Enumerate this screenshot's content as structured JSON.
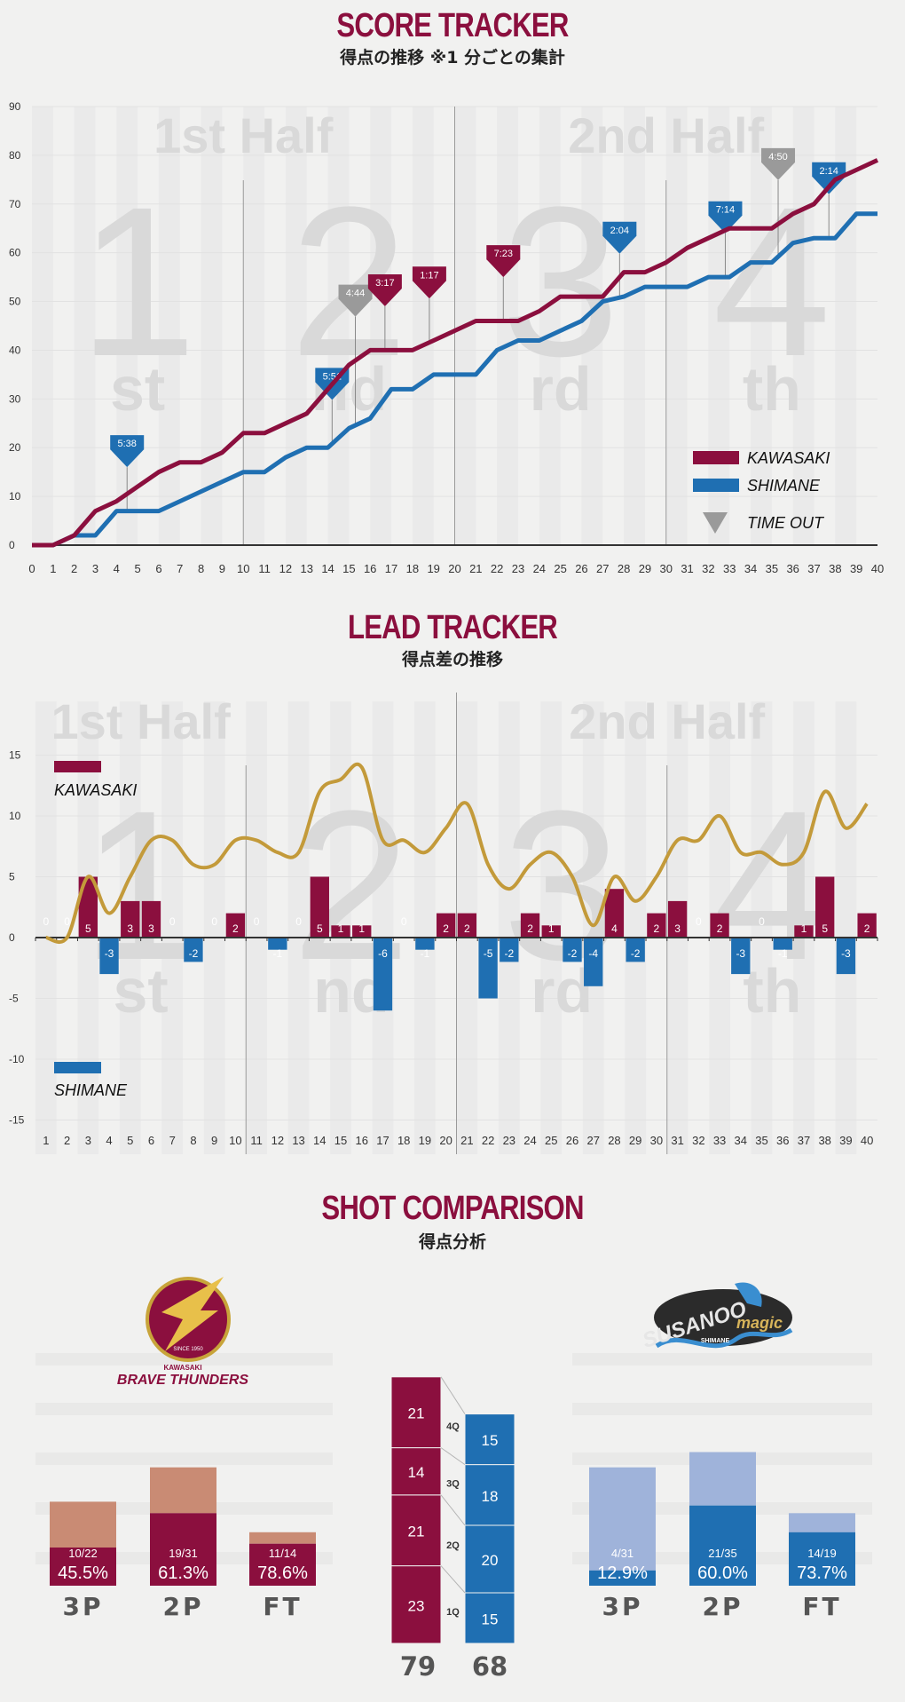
{
  "colors": {
    "kawasaki": "#8b0f3e",
    "shimane": "#1f6fb2",
    "timeout": "#9a9a9a",
    "lead_line": "#c39a3a",
    "kawasaki_light": "#c98b74",
    "shimane_light": "#9fb3da",
    "background": "#f1f1f0",
    "watermark": "#d9d9d9"
  },
  "score_tracker": {
    "title": "SCORE TRACKER",
    "subtitle": "得点の推移 ※1 分ごとの集計",
    "half_labels": [
      "1st Half",
      "2nd Half"
    ],
    "quarter_watermarks": [
      {
        "digit": "1",
        "suffix": "st"
      },
      {
        "digit": "2",
        "suffix": "nd"
      },
      {
        "digit": "3",
        "suffix": "rd"
      },
      {
        "digit": "4",
        "suffix": "th"
      }
    ],
    "legend": {
      "kawasaki": "KAWASAKI",
      "shimane": "SHIMANE",
      "timeout": "TIME OUT"
    }
  },
  "lead_tracker": {
    "title": "LEAD TRACKER",
    "subtitle": "得点差の推移",
    "legend": {
      "kawasaki": "KAWASAKI",
      "shimane": "SHIMANE"
    }
  },
  "shot_comparison": {
    "title": "SHOT COMPARISON",
    "subtitle": "得点分析",
    "kawasaki_logo": {
      "name": "BRAVE THUNDERS",
      "top": "KAWASAKI",
      "small": "SINCE 1950"
    },
    "shimane_logo": {
      "name": "SUSANOO",
      "sub": "magic",
      "small": "SHIMANE"
    },
    "kawasaki": [
      {
        "label": "3P",
        "made_att": "10/22",
        "pct": "45.5%",
        "made": 10,
        "att": 22
      },
      {
        "label": "2P",
        "made_att": "19/31",
        "pct": "61.3%",
        "made": 19,
        "att": 31
      },
      {
        "label": "FT",
        "made_att": "11/14",
        "pct": "78.6%",
        "made": 11,
        "att": 14
      }
    ],
    "shimane": [
      {
        "label": "3P",
        "made_att": "4/31",
        "pct": "12.9%",
        "made": 4,
        "att": 31
      },
      {
        "label": "2P",
        "made_att": "21/35",
        "pct": "60.0%",
        "made": 21,
        "att": 35
      },
      {
        "label": "FT",
        "made_att": "14/19",
        "pct": "73.7%",
        "made": 14,
        "att": 19
      }
    ],
    "quarters": [
      "1Q",
      "2Q",
      "3Q",
      "4Q"
    ],
    "kawasaki_quarters": [
      23,
      21,
      14,
      21
    ],
    "shimane_quarters": [
      15,
      20,
      18,
      15
    ],
    "kawasaki_total": "79",
    "shimane_total": "68"
  },
  "chart_data": [
    {
      "type": "line",
      "title": "SCORE TRACKER",
      "x": [
        0,
        1,
        2,
        3,
        4,
        5,
        6,
        7,
        8,
        9,
        10,
        11,
        12,
        13,
        14,
        15,
        16,
        17,
        18,
        19,
        20,
        21,
        22,
        23,
        24,
        25,
        26,
        27,
        28,
        29,
        30,
        31,
        32,
        33,
        34,
        35,
        36,
        37,
        38,
        39,
        40
      ],
      "xlim": [
        0,
        40
      ],
      "ylim": [
        0,
        90
      ],
      "yticks": [
        0,
        10,
        20,
        30,
        40,
        50,
        60,
        70,
        80,
        90
      ],
      "series": [
        {
          "name": "KAWASAKI",
          "values": [
            0,
            0,
            2,
            7,
            9,
            12,
            15,
            17,
            17,
            19,
            23,
            23,
            25,
            27,
            32,
            37,
            40,
            40,
            40,
            42,
            44,
            46,
            46,
            46,
            48,
            51,
            51,
            51,
            56,
            56,
            58,
            61,
            63,
            65,
            65,
            65,
            68,
            70,
            75,
            77,
            79
          ]
        },
        {
          "name": "SHIMANE",
          "values": [
            0,
            0,
            2,
            2,
            7,
            7,
            7,
            9,
            11,
            13,
            15,
            15,
            18,
            20,
            20,
            24,
            26,
            32,
            32,
            35,
            35,
            35,
            40,
            42,
            42,
            44,
            46,
            50,
            51,
            53,
            53,
            53,
            55,
            55,
            58,
            58,
            62,
            63,
            63,
            68,
            68
          ]
        }
      ],
      "timeouts": [
        {
          "label": "5:38",
          "team": "SHIMANE",
          "x": 4.5
        },
        {
          "label": "5:51",
          "team": "SHIMANE",
          "x": 14.2
        },
        {
          "label": "4:44",
          "team": "TIME OUT",
          "x": 15.3
        },
        {
          "label": "3:17",
          "team": "KAWASAKI",
          "x": 16.7
        },
        {
          "label": "1:17",
          "team": "KAWASAKI",
          "x": 18.8
        },
        {
          "label": "7:23",
          "team": "KAWASAKI",
          "x": 22.3
        },
        {
          "label": "2:04",
          "team": "SHIMANE",
          "x": 27.8
        },
        {
          "label": "7:14",
          "team": "SHIMANE",
          "x": 32.8
        },
        {
          "label": "4:50",
          "team": "TIME OUT",
          "x": 35.3
        },
        {
          "label": "2:14",
          "team": "SHIMANE",
          "x": 37.7
        }
      ]
    },
    {
      "type": "bar",
      "title": "LEAD TRACKER",
      "categories": [
        1,
        2,
        3,
        4,
        5,
        6,
        7,
        8,
        9,
        10,
        11,
        12,
        13,
        14,
        15,
        16,
        17,
        18,
        19,
        20,
        21,
        22,
        23,
        24,
        25,
        26,
        27,
        28,
        29,
        30,
        31,
        32,
        33,
        34,
        35,
        36,
        37,
        38,
        39,
        40
      ],
      "values": [
        0,
        0,
        5,
        -3,
        3,
        3,
        0,
        -2,
        0,
        2,
        0,
        -1,
        0,
        5,
        1,
        1,
        -6,
        0,
        -1,
        2,
        2,
        -5,
        -2,
        2,
        1,
        -2,
        -4,
        4,
        -2,
        2,
        3,
        0,
        2,
        -3,
        0,
        -1,
        1,
        5,
        -3,
        2
      ],
      "labels": [
        "0",
        "0",
        "5",
        "-3",
        "3",
        "3",
        "0",
        "-2",
        "0",
        "2",
        "0",
        "-1",
        "0",
        "5",
        "1",
        "1",
        "-6",
        "0",
        "-1",
        "2",
        "2",
        "-5",
        "-2",
        "2",
        "1",
        "-2",
        "-4",
        "4",
        "-2",
        "2",
        "3",
        "0",
        "2",
        "-3",
        "0",
        "-1",
        "1",
        "5",
        "-3",
        "2"
      ],
      "ylim": [
        -15,
        15
      ],
      "yticks": [
        15,
        10,
        5,
        0,
        -5,
        -10,
        -15
      ],
      "line": [
        0,
        0,
        5,
        2,
        5,
        8,
        8,
        6,
        6,
        8,
        8,
        7,
        7,
        12,
        13,
        14,
        8,
        8,
        7,
        9,
        11,
        6,
        4,
        6,
        7,
        5,
        1,
        5,
        3,
        5,
        8,
        8,
        10,
        7,
        7,
        6,
        7,
        12,
        9,
        11
      ]
    }
  ]
}
